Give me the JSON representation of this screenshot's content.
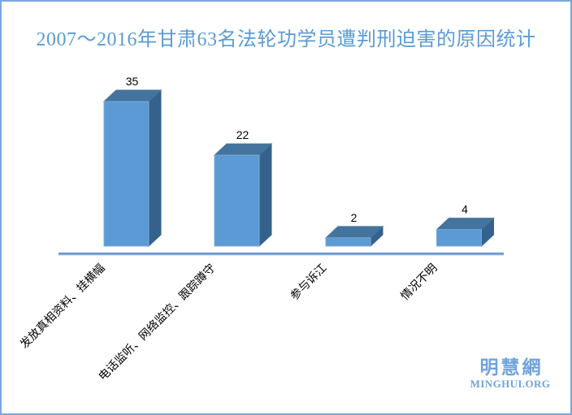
{
  "title": {
    "text": "2007～2016年甘肃63名法轮功学员遭判刑迫害的原因统计",
    "color": "#5B9BD5"
  },
  "chart_data": {
    "type": "bar",
    "style": "3d-column",
    "title": "2007～2016年甘肃63名法轮功学员遭判刑迫害的原因统计",
    "categories": [
      "发放真相资料、挂横幅",
      "电话监听、网络监控、跟踪蹲守",
      "参与诉江",
      "情况不明"
    ],
    "values": [
      35,
      22,
      2,
      4
    ],
    "data_labels": [
      35,
      22,
      2,
      4
    ],
    "xlabel": "",
    "ylabel": "",
    "ylim": [
      0,
      35
    ],
    "grid": false,
    "legend": false,
    "category_label_rotation_deg": 45,
    "colors": {
      "bar_front": "#5B9AD5",
      "bar_top": "#44749E",
      "bar_side": "#35628C",
      "axis_line": "#5585C5",
      "axis_halo": "#A8C4E5",
      "value_label_text": "#000000",
      "category_label_text": "#000000"
    }
  },
  "watermark": {
    "cjk": "明慧網",
    "latin": "MINGHUI.ORG",
    "color": "#6FA3DC"
  },
  "frame": {
    "border_color": "#7BA7DB",
    "background": "#FFFFFF"
  }
}
